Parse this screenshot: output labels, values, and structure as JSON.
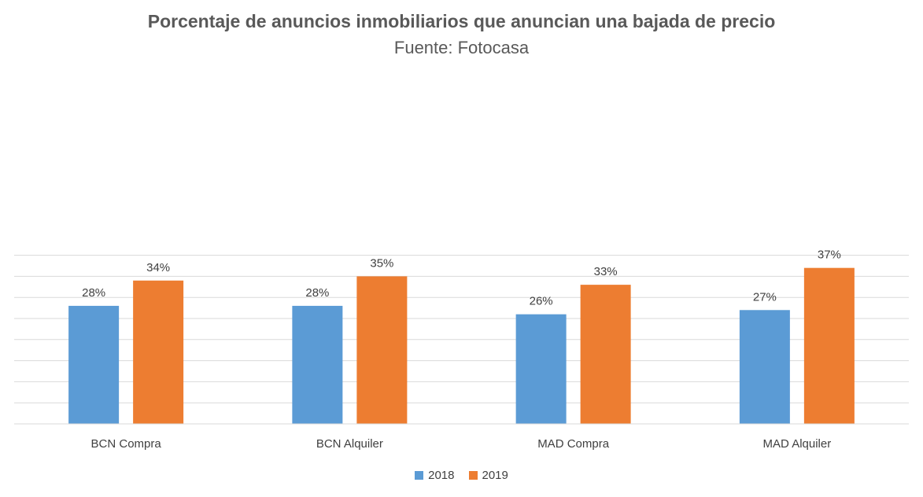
{
  "chart_data": {
    "type": "bar",
    "title": "Porcentaje de anuncios inmobiliarios que anuncian una bajada de precio",
    "subtitle": "Fuente: Fotocasa",
    "categories": [
      "BCN Compra",
      "BCN Alquiler",
      "MAD Compra",
      "MAD Alquiler"
    ],
    "series": [
      {
        "name": "2018",
        "values": [
          28,
          28,
          26,
          27
        ],
        "labels": [
          "28%",
          "28%",
          "26%",
          "27%"
        ],
        "color": "#5B9BD5"
      },
      {
        "name": "2019",
        "values": [
          34,
          35,
          33,
          37
        ],
        "labels": [
          "34%",
          "35%",
          "33%",
          "37%"
        ],
        "color": "#ED7D31"
      }
    ],
    "ylim": [
      0,
      40
    ],
    "grid": true,
    "legend": "bottom"
  }
}
